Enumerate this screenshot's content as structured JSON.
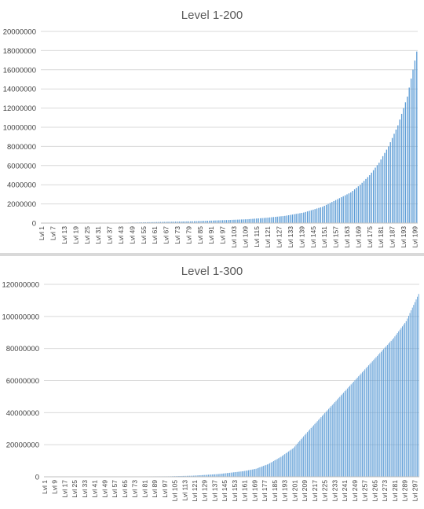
{
  "colors": {
    "bar": "#5b9bd5",
    "grid": "#d9d9d9",
    "text": "#595959"
  },
  "chart_data": [
    {
      "type": "bar",
      "title": "Level 1-200",
      "xlabel": "",
      "ylabel": "",
      "ylim": [
        0,
        20000000
      ],
      "yticks": [
        "0",
        "2000000",
        "4000000",
        "6000000",
        "8000000",
        "10000000",
        "12000000",
        "14000000",
        "16000000",
        "18000000",
        "20000000"
      ],
      "xtick_labels": [
        "Lvl 1",
        "Lvl 7",
        "Lvl 13",
        "Lvl 19",
        "Lvl 25",
        "Lvl 31",
        "Lvl 37",
        "Lvl 43",
        "Lvl 49",
        "Lvl 55",
        "Lvl 61",
        "Lvl 67",
        "Lvl 73",
        "Lvl 79",
        "Lvl 85",
        "Lvl 91",
        "Lvl 97",
        "Lvl 103",
        "Lvl 109",
        "Lvl 115",
        "Lvl 121",
        "Lvl 127",
        "Lvl 133",
        "Lvl 139",
        "Lvl 145",
        "Lvl 151",
        "Lvl 157",
        "Lvl 163",
        "Lvl 169",
        "Lvl 175",
        "Lvl 181",
        "Lvl 187",
        "Lvl 193",
        "Lvl 199"
      ],
      "grid": true,
      "legend": "none",
      "levels": {
        "first": 1,
        "last": 200
      },
      "curve_points": [
        [
          1,
          0
        ],
        [
          40,
          20000
        ],
        [
          60,
          100000
        ],
        [
          80,
          180000
        ],
        [
          100,
          320000
        ],
        [
          110,
          400000
        ],
        [
          120,
          550000
        ],
        [
          130,
          750000
        ],
        [
          140,
          1100000
        ],
        [
          150,
          1700000
        ],
        [
          160,
          2700000
        ],
        [
          165,
          3200000
        ],
        [
          170,
          4000000
        ],
        [
          175,
          5000000
        ],
        [
          180,
          6300000
        ],
        [
          185,
          8000000
        ],
        [
          190,
          10200000
        ],
        [
          195,
          13200000
        ],
        [
          200,
          17900000
        ]
      ]
    },
    {
      "type": "bar",
      "title": "Level 1-300",
      "xlabel": "",
      "ylabel": "",
      "ylim": [
        0,
        120000000
      ],
      "yticks": [
        "0",
        "20000000",
        "40000000",
        "60000000",
        "80000000",
        "100000000",
        "120000000"
      ],
      "xtick_labels": [
        "Lvl 1",
        "Lvl 9",
        "Lvl 17",
        "Lvl 25",
        "Lvl 33",
        "Lvl 41",
        "Lvl 49",
        "Lvl 57",
        "Lvl 65",
        "Lvl 73",
        "Lvl 81",
        "Lvl 89",
        "Lvl 97",
        "Lvl 105",
        "Lvl 113",
        "Lvl 121",
        "Lvl 129",
        "Lvl 137",
        "Lvl 145",
        "Lvl 153",
        "Lvl 161",
        "Lvl 169",
        "Lvl 177",
        "Lvl 185",
        "Lvl 193",
        "Lvl 201",
        "Lvl 209",
        "Lvl 217",
        "Lvl 225",
        "Lvl 233",
        "Lvl 241",
        "Lvl 249",
        "Lvl 257",
        "Lvl 265",
        "Lvl 273",
        "Lvl 281",
        "Lvl 289",
        "Lvl 297"
      ],
      "grid": true,
      "legend": "none",
      "levels": {
        "first": 1,
        "last": 300
      },
      "curve_points": [
        [
          1,
          0
        ],
        [
          100,
          300000
        ],
        [
          120,
          700000
        ],
        [
          140,
          1700000
        ],
        [
          160,
          3500000
        ],
        [
          170,
          5000000
        ],
        [
          180,
          8000000
        ],
        [
          190,
          12500000
        ],
        [
          200,
          18000000
        ],
        [
          210,
          27000000
        ],
        [
          220,
          35500000
        ],
        [
          230,
          44000000
        ],
        [
          240,
          52500000
        ],
        [
          250,
          61000000
        ],
        [
          260,
          69500000
        ],
        [
          270,
          78000000
        ],
        [
          280,
          86500000
        ],
        [
          290,
          97000000
        ],
        [
          300,
          114000000
        ]
      ]
    }
  ]
}
